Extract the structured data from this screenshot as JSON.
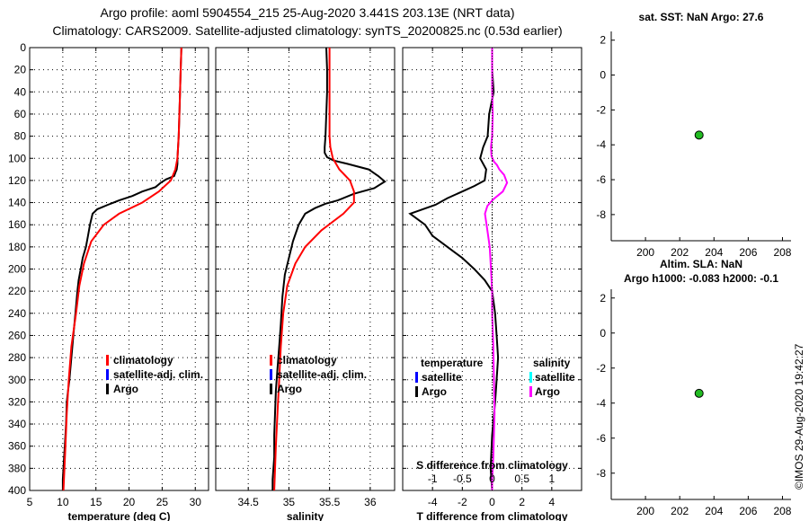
{
  "header": {
    "title_line1": "Argo profile: aoml 5904554_215 25-Aug-2020 3.441S 203.13E (NRT data)",
    "title_line2": "Climatology: CARS2009. Satellite-adjusted climatology: synTS_20200825.nc (0.53d earlier)"
  },
  "watermark": "©IMOS 29-Aug-2020 19:42:27",
  "colors": {
    "argo": "#000000",
    "climatology": "#ff0000",
    "satellite_adj": "#0000ff",
    "salinity_diff": "#ff00ff",
    "salinity_sat": "#00ffff",
    "marker_fill": "#22bb22"
  },
  "chart_data": [
    {
      "id": "temperature",
      "type": "line",
      "xlabel": "temperature (deg C)",
      "xlim": [
        5,
        32
      ],
      "xticks": [
        5,
        10,
        15,
        20,
        25,
        30
      ],
      "ylim": [
        0,
        400
      ],
      "yticks": [
        0,
        20,
        40,
        60,
        80,
        100,
        120,
        140,
        160,
        180,
        200,
        220,
        240,
        260,
        280,
        300,
        320,
        340,
        360,
        380,
        400
      ],
      "y_reversed": true,
      "legend": [
        "climatology",
        "satellite-adj. clim.",
        "Argo"
      ],
      "series": [
        {
          "name": "Argo",
          "color": "#000000",
          "x": [
            27.9,
            27.8,
            27.7,
            27.6,
            27.5,
            27.4,
            27.3,
            27.3,
            27.2,
            27.0,
            26.8,
            25.6,
            24.8,
            24.0,
            22.0,
            20.5,
            18.5,
            16.8,
            15.2,
            14.5,
            14.1,
            13.8,
            13.5,
            13.0,
            12.7,
            12.4,
            12.2,
            11.9,
            11.6,
            11.3,
            11.0,
            10.8,
            10.6,
            10.5,
            10.4,
            10.3,
            10.2,
            10.0,
            10.0
          ],
          "y": [
            0,
            20,
            40,
            60,
            80,
            90,
            100,
            105,
            110,
            113,
            116,
            119,
            122,
            126,
            130,
            134,
            138,
            142,
            146,
            150,
            160,
            170,
            180,
            190,
            200,
            210,
            220,
            240,
            260,
            280,
            300,
            310,
            320,
            340,
            350,
            360,
            370,
            390,
            400
          ]
        },
        {
          "name": "climatology",
          "color": "#ff0000",
          "x": [
            27.9,
            27.8,
            27.7,
            27.5,
            27.3,
            27.0,
            26.3,
            24.5,
            22.0,
            18.5,
            16.2,
            14.3,
            13.2,
            12.5,
            12.0,
            11.3,
            10.9,
            10.6,
            10.4,
            10.1
          ],
          "y": [
            0,
            20,
            40,
            80,
            100,
            110,
            120,
            130,
            140,
            150,
            160,
            175,
            195,
            215,
            240,
            270,
            300,
            330,
            360,
            400
          ]
        }
      ]
    },
    {
      "id": "salinity",
      "type": "line",
      "xlabel": "salinity",
      "xlim": [
        34.1,
        36.3
      ],
      "xticks": [
        34.5,
        35,
        35.5,
        36
      ],
      "xtick_labels": [
        "34.5",
        "35",
        "35.5",
        "36"
      ],
      "ylim": [
        0,
        400
      ],
      "y_reversed": true,
      "legend": [
        "climatology",
        "satellite-adj. clim.",
        "Argo"
      ],
      "series": [
        {
          "name": "Argo",
          "color": "#000000",
          "x": [
            35.46,
            35.47,
            35.47,
            35.46,
            35.45,
            35.44,
            35.44,
            35.47,
            35.55,
            35.72,
            35.98,
            36.1,
            36.18,
            36.05,
            35.8,
            35.6,
            35.45,
            35.32,
            35.2,
            35.12,
            35.05,
            35.0,
            34.95,
            34.92,
            34.9,
            34.88,
            34.86,
            34.84,
            34.83,
            34.82,
            34.82,
            34.8,
            34.8
          ],
          "y": [
            0,
            20,
            40,
            60,
            80,
            90,
            95,
            99,
            102,
            105,
            110,
            116,
            121,
            127,
            132,
            138,
            141,
            145,
            150,
            160,
            175,
            190,
            205,
            225,
            250,
            270,
            290,
            310,
            330,
            350,
            370,
            390,
            400
          ]
        },
        {
          "name": "climatology",
          "color": "#ff0000",
          "x": [
            35.5,
            35.5,
            35.5,
            35.5,
            35.5,
            35.51,
            35.54,
            35.62,
            35.75,
            35.8,
            35.8,
            35.67,
            35.4,
            35.2,
            35.08,
            34.98,
            34.93,
            34.9,
            34.88,
            34.86,
            34.84,
            34.82
          ],
          "y": [
            0,
            20,
            40,
            60,
            80,
            90,
            100,
            110,
            120,
            130,
            140,
            150,
            165,
            180,
            195,
            215,
            240,
            270,
            300,
            330,
            360,
            400
          ]
        }
      ]
    },
    {
      "id": "difference",
      "type": "line",
      "xlabel": "T difference from climatology",
      "xlim": [
        -6,
        6
      ],
      "xticks": [
        -4,
        -2,
        0,
        2,
        4
      ],
      "top_axis_label": "S difference from climatology",
      "top_xticks": [
        -1,
        -0.5,
        0,
        0.5,
        1
      ],
      "top_xtick_labels": [
        "-1",
        "-0.5",
        "0",
        "0.5",
        "1"
      ],
      "top_xlim": [
        -1.5,
        1.5
      ],
      "ylim": [
        0,
        400
      ],
      "y_reversed": true,
      "legend_titles": [
        "temperature",
        "salinity"
      ],
      "legend_temperature": [
        "satellite",
        "Argo"
      ],
      "legend_salinity": [
        "satellite",
        "Argo"
      ],
      "series": [
        {
          "name": "T difference Argo",
          "color": "#000000",
          "x": [
            0.0,
            0.0,
            0.1,
            -0.2,
            -0.3,
            -0.6,
            -0.8,
            -0.4,
            -0.5,
            -1.2,
            -2.0,
            -3.0,
            -3.8,
            -5.5,
            -4.5,
            -4.0,
            -3.0,
            -2.0,
            -1.2,
            -0.5,
            0.0,
            0.2,
            0.3,
            0.4,
            0.3,
            0.2,
            0.0,
            -0.1,
            0.0
          ],
          "y": [
            0,
            20,
            40,
            60,
            80,
            90,
            100,
            110,
            120,
            125,
            130,
            136,
            142,
            150,
            160,
            170,
            180,
            190,
            200,
            210,
            220,
            240,
            260,
            280,
            300,
            320,
            350,
            380,
            400
          ]
        },
        {
          "name": "S difference Argo",
          "color": "#ff00ff",
          "x": [
            0.0,
            0.0,
            0.0,
            0.01,
            0.0,
            -0.02,
            -0.01,
            0.03,
            0.08,
            0.12,
            0.2,
            0.25,
            0.18,
            0.02,
            -0.08,
            -0.12,
            -0.08,
            -0.04,
            -0.02,
            0.0,
            0.0,
            0.02,
            0.03,
            0.04,
            0.03,
            0.02,
            0.0,
            0.0
          ],
          "y": [
            0,
            20,
            40,
            60,
            80,
            90,
            98,
            103,
            106,
            110,
            115,
            122,
            130,
            137,
            143,
            150,
            165,
            180,
            200,
            220,
            240,
            270,
            300,
            330,
            350,
            370,
            390,
            400
          ]
        }
      ]
    },
    {
      "id": "sat_sst",
      "type": "scatter",
      "title": "sat. SST: NaN Argo: 27.6",
      "xlim": [
        198,
        208.5
      ],
      "xticks": [
        200,
        202,
        204,
        206,
        208
      ],
      "ylim": [
        -9.5,
        2.5
      ],
      "yticks": [
        2,
        0,
        -2,
        -4,
        -6,
        -8
      ],
      "points": [
        {
          "x": 203.13,
          "y": -3.441
        }
      ]
    },
    {
      "id": "altim_sla",
      "type": "scatter",
      "title": "Altim. SLA: NaN",
      "subtitle": "Argo h1000: -0.083 h2000: -0.1",
      "xlim": [
        198,
        208.5
      ],
      "xticks": [
        200,
        202,
        204,
        206,
        208
      ],
      "ylim": [
        -9.5,
        2.5
      ],
      "yticks": [
        2,
        0,
        -2,
        -4,
        -6,
        -8
      ],
      "points": [
        {
          "x": 203.13,
          "y": -3.441
        }
      ]
    }
  ]
}
